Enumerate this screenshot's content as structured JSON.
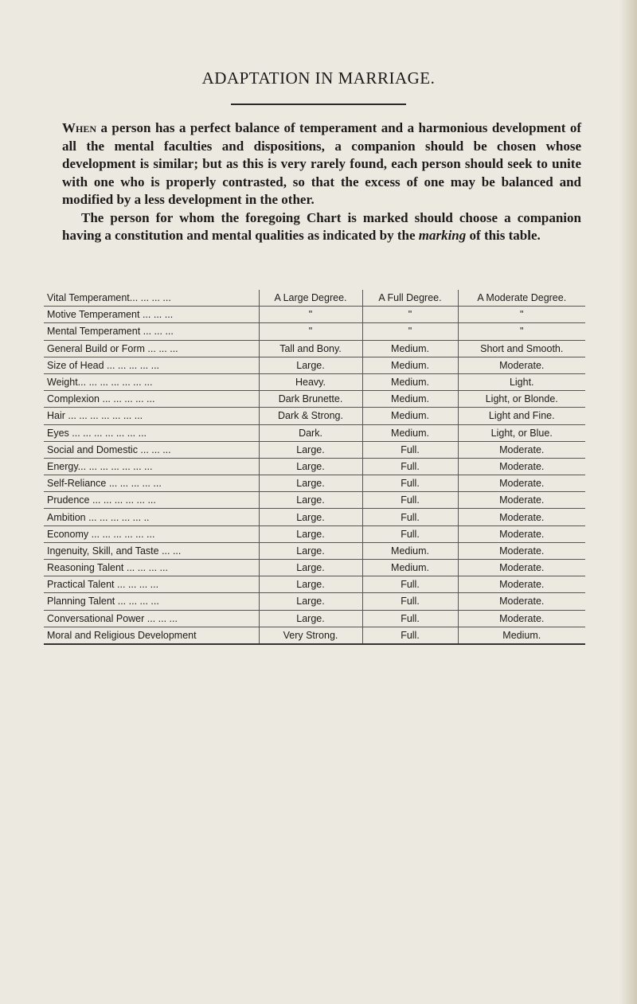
{
  "header": {
    "title": "ADAPTATION IN MARRIAGE."
  },
  "paragraphs": [
    {
      "parts": [
        "When",
        " a person has a perfect balance of temperament and a harmonious development of all the mental faculties and dispositions, a companion should be chosen whose development is similar; but as this is very rarely found, each person should seek to unite with one who is properly contrasted, so that the excess of one may be balanced and modified by a less development in the other."
      ]
    },
    {
      "parts": [
        "The person for whom the foregoing Chart is marked should choose a companion having a constitution and mental qualities as indicated by the ",
        "marking",
        " of this table."
      ]
    }
  ],
  "table": {
    "rows": [
      [
        "Vital Temperament... ... ... ...",
        "A Large Degree.",
        "A Full Degree.",
        "A Moderate Degree."
      ],
      [
        "Motive Temperament ... ... ...",
        "\"",
        "\"",
        "\""
      ],
      [
        "Mental Temperament ... ... ...",
        "\"",
        "\"",
        "\""
      ],
      [
        "General Build or Form ... ... ...",
        "Tall and Bony.",
        "Medium.",
        "Short and Smooth."
      ],
      [
        "Size of Head ... ... ... ... ...",
        "Large.",
        "Medium.",
        "Moderate."
      ],
      [
        "Weight... ... ... ... ... ... ...",
        "Heavy.",
        "Medium.",
        "Light."
      ],
      [
        "Complexion ... ... ... ... ...",
        "Dark Brunette.",
        "Medium.",
        "Light, or Blonde."
      ],
      [
        "Hair ... ... ... ... ... ... ...",
        "Dark & Strong.",
        "Medium.",
        "Light and Fine."
      ],
      [
        "Eyes ... ... ... ... ... ... ...",
        "Dark.",
        "Medium.",
        "Light, or Blue."
      ],
      [
        "Social and Domestic ... ... ...",
        "Large.",
        "Full.",
        "Moderate."
      ],
      [
        "Energy... ... ... ... ... ... ...",
        "Large.",
        "Full.",
        "Moderate."
      ],
      [
        "Self-Reliance ... ... ... ... ...",
        "Large.",
        "Full.",
        "Moderate."
      ],
      [
        "Prudence ... ... ... ... ... ...",
        "Large.",
        "Full.",
        "Moderate."
      ],
      [
        "Ambition ... ... ... ... ... ..",
        "Large.",
        "Full.",
        "Moderate."
      ],
      [
        "Economy ... ... ... ... ... ...",
        "Large.",
        "Full.",
        "Moderate."
      ],
      [
        "Ingenuity, Skill, and Taste ... ...",
        "Large.",
        "Medium.",
        "Moderate."
      ],
      [
        "Reasoning Talent ... ... ... ...",
        "Large.",
        "Medium.",
        "Moderate."
      ],
      [
        "Practical Talent ... ... ... ...",
        "Large.",
        "Full.",
        "Moderate."
      ],
      [
        "Planning Talent ... ... ... ...",
        "Large.",
        "Full.",
        "Moderate."
      ],
      [
        "Conversational Power ... ... ...",
        "Large.",
        "Full.",
        "Moderate."
      ],
      [
        "Moral and Religious Development",
        "Very Strong.",
        "Full.",
        "Medium."
      ]
    ]
  }
}
